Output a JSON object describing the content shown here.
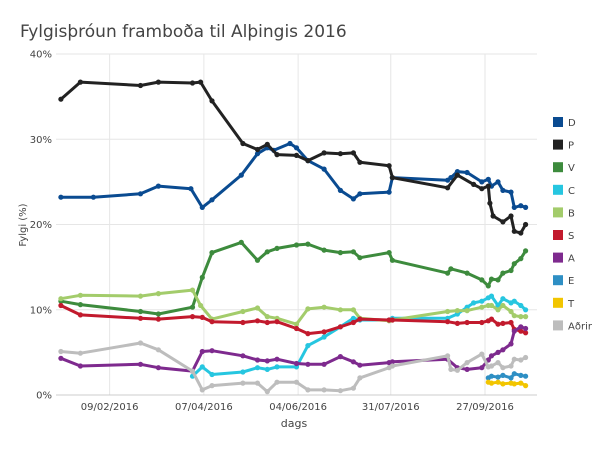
{
  "chart_data": {
    "type": "line",
    "title": "Fylgisþróun framboða til Alþingis 2016",
    "xlabel": "dags",
    "ylabel": "Fylgi (%)",
    "ylim": [
      0,
      40
    ],
    "yticks": [
      "0%",
      "10%",
      "20%",
      "30%",
      "40%"
    ],
    "xlim": [
      "2016-01-07",
      "2016-10-29"
    ],
    "xticks": [
      {
        "date": "2016-02-09",
        "label": "09/02/2016"
      },
      {
        "date": "2016-04-07",
        "label": "07/04/2016"
      },
      {
        "date": "2016-06-04",
        "label": "04/06/2016"
      },
      {
        "date": "2016-07-31",
        "label": "31/07/2016"
      },
      {
        "date": "2016-09-27",
        "label": "27/09/2016"
      }
    ],
    "grid": true,
    "legend_position": "right",
    "series": [
      {
        "name": "D",
        "color": "#0a4b91",
        "points": [
          [
            "2016-01-10",
            23.2
          ],
          [
            "2016-01-30",
            23.2
          ],
          [
            "2016-02-28",
            23.6
          ],
          [
            "2016-03-10",
            24.5
          ],
          [
            "2016-03-30",
            24.2
          ],
          [
            "2016-04-06",
            22.0
          ],
          [
            "2016-04-12",
            22.9
          ],
          [
            "2016-04-30",
            25.8
          ],
          [
            "2016-05-10",
            28.3
          ],
          [
            "2016-05-16",
            29.0
          ],
          [
            "2016-05-20",
            28.7
          ],
          [
            "2016-05-30",
            29.5
          ],
          [
            "2016-06-03",
            29.0
          ],
          [
            "2016-06-10",
            27.5
          ],
          [
            "2016-06-20",
            26.5
          ],
          [
            "2016-06-30",
            24.0
          ],
          [
            "2016-07-08",
            23.0
          ],
          [
            "2016-07-12",
            23.6
          ],
          [
            "2016-07-30",
            23.8
          ],
          [
            "2016-08-01",
            25.5
          ],
          [
            "2016-09-04",
            25.2
          ],
          [
            "2016-09-06",
            25.5
          ],
          [
            "2016-09-10",
            26.2
          ],
          [
            "2016-09-16",
            26.1
          ],
          [
            "2016-09-25",
            25.0
          ],
          [
            "2016-09-29",
            25.3
          ],
          [
            "2016-10-01",
            24.5
          ],
          [
            "2016-10-05",
            25.0
          ],
          [
            "2016-10-08",
            24.0
          ],
          [
            "2016-10-13",
            23.8
          ],
          [
            "2016-10-15",
            22.0
          ],
          [
            "2016-10-19",
            22.2
          ],
          [
            "2016-10-22",
            22.0
          ]
        ]
      },
      {
        "name": "P",
        "color": "#222222",
        "points": [
          [
            "2016-01-10",
            34.7
          ],
          [
            "2016-01-22",
            36.7
          ],
          [
            "2016-02-28",
            36.3
          ],
          [
            "2016-03-10",
            36.7
          ],
          [
            "2016-03-31",
            36.6
          ],
          [
            "2016-04-05",
            36.7
          ],
          [
            "2016-04-12",
            34.5
          ],
          [
            "2016-05-01",
            29.5
          ],
          [
            "2016-05-10",
            28.8
          ],
          [
            "2016-05-16",
            29.4
          ],
          [
            "2016-05-22",
            28.2
          ],
          [
            "2016-06-03",
            28.1
          ],
          [
            "2016-06-10",
            27.5
          ],
          [
            "2016-06-20",
            28.4
          ],
          [
            "2016-06-30",
            28.3
          ],
          [
            "2016-07-08",
            28.4
          ],
          [
            "2016-07-12",
            27.3
          ],
          [
            "2016-07-30",
            26.9
          ],
          [
            "2016-08-01",
            25.5
          ],
          [
            "2016-09-04",
            24.3
          ],
          [
            "2016-09-10",
            25.8
          ],
          [
            "2016-09-20",
            24.7
          ],
          [
            "2016-09-25",
            24.2
          ],
          [
            "2016-09-29",
            24.5
          ],
          [
            "2016-09-30",
            22.5
          ],
          [
            "2016-10-02",
            21.0
          ],
          [
            "2016-10-08",
            20.3
          ],
          [
            "2016-10-13",
            21.0
          ],
          [
            "2016-10-15",
            19.2
          ],
          [
            "2016-10-19",
            19.0
          ],
          [
            "2016-10-22",
            20.0
          ]
        ]
      },
      {
        "name": "V",
        "color": "#3d8b3d",
        "points": [
          [
            "2016-01-10",
            11.0
          ],
          [
            "2016-01-22",
            10.6
          ],
          [
            "2016-02-28",
            9.8
          ],
          [
            "2016-03-10",
            9.5
          ],
          [
            "2016-03-31",
            10.3
          ],
          [
            "2016-04-06",
            13.8
          ],
          [
            "2016-04-12",
            16.7
          ],
          [
            "2016-04-30",
            17.9
          ],
          [
            "2016-05-10",
            15.8
          ],
          [
            "2016-05-16",
            16.8
          ],
          [
            "2016-05-22",
            17.2
          ],
          [
            "2016-06-03",
            17.6
          ],
          [
            "2016-06-10",
            17.7
          ],
          [
            "2016-06-20",
            17.0
          ],
          [
            "2016-06-30",
            16.7
          ],
          [
            "2016-07-08",
            16.8
          ],
          [
            "2016-07-12",
            16.1
          ],
          [
            "2016-07-30",
            16.7
          ],
          [
            "2016-08-01",
            15.8
          ],
          [
            "2016-09-04",
            14.3
          ],
          [
            "2016-09-06",
            14.8
          ],
          [
            "2016-09-16",
            14.3
          ],
          [
            "2016-09-25",
            13.5
          ],
          [
            "2016-09-29",
            12.8
          ],
          [
            "2016-10-01",
            13.6
          ],
          [
            "2016-10-05",
            13.5
          ],
          [
            "2016-10-08",
            14.3
          ],
          [
            "2016-10-13",
            14.6
          ],
          [
            "2016-10-15",
            15.4
          ],
          [
            "2016-10-19",
            16.0
          ],
          [
            "2016-10-22",
            16.9
          ]
        ]
      },
      {
        "name": "C",
        "color": "#26c6e0",
        "points": [
          [
            "2016-03-31",
            2.2
          ],
          [
            "2016-04-06",
            3.3
          ],
          [
            "2016-04-12",
            2.4
          ],
          [
            "2016-05-01",
            2.7
          ],
          [
            "2016-05-10",
            3.2
          ],
          [
            "2016-05-16",
            3.0
          ],
          [
            "2016-05-22",
            3.3
          ],
          [
            "2016-06-03",
            3.3
          ],
          [
            "2016-06-10",
            5.8
          ],
          [
            "2016-06-20",
            6.8
          ],
          [
            "2016-06-30",
            8.0
          ],
          [
            "2016-07-08",
            9.0
          ],
          [
            "2016-07-12",
            8.8
          ],
          [
            "2016-07-30",
            8.8
          ],
          [
            "2016-08-01",
            9.0
          ],
          [
            "2016-09-04",
            9.0
          ],
          [
            "2016-09-10",
            9.5
          ],
          [
            "2016-09-16",
            10.3
          ],
          [
            "2016-09-20",
            10.8
          ],
          [
            "2016-09-25",
            11.0
          ],
          [
            "2016-09-29",
            11.4
          ],
          [
            "2016-10-01",
            11.6
          ],
          [
            "2016-10-05",
            10.5
          ],
          [
            "2016-10-08",
            11.3
          ],
          [
            "2016-10-13",
            10.8
          ],
          [
            "2016-10-15",
            11.0
          ],
          [
            "2016-10-19",
            10.5
          ],
          [
            "2016-10-22",
            10.0
          ]
        ]
      },
      {
        "name": "B",
        "color": "#a3cc6b",
        "points": [
          [
            "2016-01-10",
            11.3
          ],
          [
            "2016-01-22",
            11.7
          ],
          [
            "2016-02-28",
            11.6
          ],
          [
            "2016-03-10",
            11.9
          ],
          [
            "2016-03-31",
            12.3
          ],
          [
            "2016-04-05",
            10.5
          ],
          [
            "2016-04-12",
            8.9
          ],
          [
            "2016-05-01",
            9.8
          ],
          [
            "2016-05-10",
            10.2
          ],
          [
            "2016-05-16",
            9.2
          ],
          [
            "2016-05-22",
            9.0
          ],
          [
            "2016-06-03",
            8.3
          ],
          [
            "2016-06-10",
            10.1
          ],
          [
            "2016-06-20",
            10.3
          ],
          [
            "2016-06-30",
            10.0
          ],
          [
            "2016-07-08",
            10.0
          ],
          [
            "2016-07-12",
            9.0
          ],
          [
            "2016-07-30",
            8.7
          ],
          [
            "2016-08-01",
            8.8
          ],
          [
            "2016-09-04",
            9.8
          ],
          [
            "2016-09-10",
            9.9
          ],
          [
            "2016-09-16",
            9.9
          ],
          [
            "2016-09-25",
            10.3
          ],
          [
            "2016-09-29",
            10.5
          ],
          [
            "2016-10-01",
            10.5
          ],
          [
            "2016-10-05",
            10.0
          ],
          [
            "2016-10-08",
            10.5
          ],
          [
            "2016-10-13",
            9.8
          ],
          [
            "2016-10-15",
            9.3
          ],
          [
            "2016-10-19",
            9.2
          ],
          [
            "2016-10-22",
            9.2
          ]
        ]
      },
      {
        "name": "S",
        "color": "#c21a2d",
        "points": [
          [
            "2016-01-10",
            10.5
          ],
          [
            "2016-01-22",
            9.4
          ],
          [
            "2016-02-28",
            9.0
          ],
          [
            "2016-03-10",
            8.9
          ],
          [
            "2016-03-31",
            9.2
          ],
          [
            "2016-04-06",
            9.1
          ],
          [
            "2016-04-12",
            8.6
          ],
          [
            "2016-05-01",
            8.5
          ],
          [
            "2016-05-10",
            8.7
          ],
          [
            "2016-05-16",
            8.5
          ],
          [
            "2016-05-22",
            8.6
          ],
          [
            "2016-06-03",
            7.8
          ],
          [
            "2016-06-10",
            7.2
          ],
          [
            "2016-06-20",
            7.4
          ],
          [
            "2016-06-30",
            8.0
          ],
          [
            "2016-07-08",
            8.5
          ],
          [
            "2016-07-12",
            8.9
          ],
          [
            "2016-07-30",
            8.8
          ],
          [
            "2016-08-01",
            8.8
          ],
          [
            "2016-09-04",
            8.6
          ],
          [
            "2016-09-10",
            8.4
          ],
          [
            "2016-09-16",
            8.5
          ],
          [
            "2016-09-25",
            8.5
          ],
          [
            "2016-09-29",
            8.7
          ],
          [
            "2016-10-01",
            8.9
          ],
          [
            "2016-10-05",
            8.3
          ],
          [
            "2016-10-08",
            8.4
          ],
          [
            "2016-10-13",
            8.5
          ],
          [
            "2016-10-15",
            7.7
          ],
          [
            "2016-10-19",
            7.5
          ],
          [
            "2016-10-22",
            7.3
          ]
        ]
      },
      {
        "name": "A",
        "color": "#7e2a8e",
        "points": [
          [
            "2016-01-10",
            4.3
          ],
          [
            "2016-01-22",
            3.4
          ],
          [
            "2016-02-28",
            3.6
          ],
          [
            "2016-03-10",
            3.2
          ],
          [
            "2016-03-31",
            2.8
          ],
          [
            "2016-04-06",
            5.1
          ],
          [
            "2016-04-12",
            5.2
          ],
          [
            "2016-05-01",
            4.6
          ],
          [
            "2016-05-10",
            4.1
          ],
          [
            "2016-05-16",
            4.0
          ],
          [
            "2016-05-22",
            4.2
          ],
          [
            "2016-06-03",
            3.7
          ],
          [
            "2016-06-10",
            3.6
          ],
          [
            "2016-06-20",
            3.6
          ],
          [
            "2016-06-30",
            4.5
          ],
          [
            "2016-07-08",
            3.9
          ],
          [
            "2016-07-12",
            3.5
          ],
          [
            "2016-07-30",
            3.8
          ],
          [
            "2016-08-01",
            3.9
          ],
          [
            "2016-09-04",
            4.2
          ],
          [
            "2016-09-10",
            3.2
          ],
          [
            "2016-09-16",
            3.0
          ],
          [
            "2016-09-25",
            3.2
          ],
          [
            "2016-09-29",
            4.1
          ],
          [
            "2016-10-01",
            4.6
          ],
          [
            "2016-10-05",
            5.0
          ],
          [
            "2016-10-08",
            5.3
          ],
          [
            "2016-10-13",
            6.0
          ],
          [
            "2016-10-15",
            7.5
          ],
          [
            "2016-10-19",
            8.0
          ],
          [
            "2016-10-22",
            7.8
          ]
        ]
      },
      {
        "name": "E",
        "color": "#2e8fc4",
        "points": [
          [
            "2016-09-29",
            2.0
          ],
          [
            "2016-10-01",
            2.2
          ],
          [
            "2016-10-05",
            2.1
          ],
          [
            "2016-10-08",
            2.3
          ],
          [
            "2016-10-13",
            2.0
          ],
          [
            "2016-10-15",
            2.5
          ],
          [
            "2016-10-19",
            2.3
          ],
          [
            "2016-10-22",
            2.2
          ]
        ]
      },
      {
        "name": "T",
        "color": "#f2c500",
        "points": [
          [
            "2016-09-29",
            1.5
          ],
          [
            "2016-10-01",
            1.4
          ],
          [
            "2016-10-05",
            1.5
          ],
          [
            "2016-10-08",
            1.3
          ],
          [
            "2016-10-13",
            1.4
          ],
          [
            "2016-10-15",
            1.3
          ],
          [
            "2016-10-19",
            1.4
          ],
          [
            "2016-10-22",
            1.1
          ]
        ]
      },
      {
        "name": "Aðrir",
        "color": "#bdbdbd",
        "points": [
          [
            "2016-01-10",
            5.1
          ],
          [
            "2016-01-22",
            4.9
          ],
          [
            "2016-02-28",
            6.1
          ],
          [
            "2016-03-10",
            5.3
          ],
          [
            "2016-03-31",
            2.8
          ],
          [
            "2016-04-06",
            0.6
          ],
          [
            "2016-04-12",
            1.1
          ],
          [
            "2016-05-01",
            1.4
          ],
          [
            "2016-05-10",
            1.4
          ],
          [
            "2016-05-16",
            0.4
          ],
          [
            "2016-05-22",
            1.5
          ],
          [
            "2016-06-03",
            1.5
          ],
          [
            "2016-06-10",
            0.6
          ],
          [
            "2016-06-20",
            0.6
          ],
          [
            "2016-06-30",
            0.5
          ],
          [
            "2016-07-08",
            0.8
          ],
          [
            "2016-07-12",
            2.0
          ],
          [
            "2016-07-30",
            3.2
          ],
          [
            "2016-08-01",
            3.4
          ],
          [
            "2016-09-04",
            4.6
          ],
          [
            "2016-09-06",
            3.0
          ],
          [
            "2016-09-10",
            2.9
          ],
          [
            "2016-09-16",
            3.8
          ],
          [
            "2016-09-25",
            4.8
          ],
          [
            "2016-09-29",
            3.3
          ],
          [
            "2016-10-01",
            3.4
          ],
          [
            "2016-10-05",
            3.8
          ],
          [
            "2016-10-08",
            3.2
          ],
          [
            "2016-10-13",
            3.4
          ],
          [
            "2016-10-15",
            4.2
          ],
          [
            "2016-10-19",
            4.1
          ],
          [
            "2016-10-22",
            4.4
          ]
        ]
      }
    ]
  }
}
